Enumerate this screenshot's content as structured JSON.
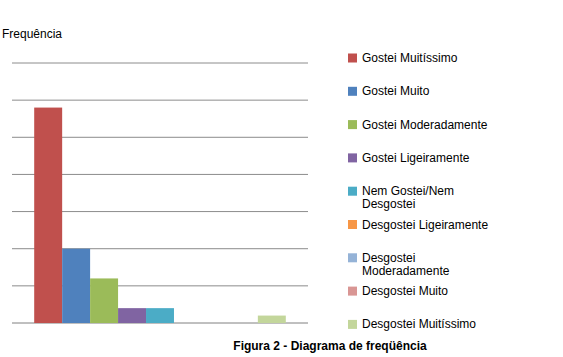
{
  "chart_data": {
    "type": "bar",
    "title": "Figura 2 - Diagrama de freqüência",
    "y_label": "Frequência",
    "categories": [
      null
    ],
    "series": [
      {
        "name": "Gostei Muitíssimo",
        "color": "#c0504d",
        "values": [
          29
        ]
      },
      {
        "name": "Gostei Muito",
        "color": "#4f81bd",
        "values": [
          10
        ]
      },
      {
        "name": "Gostei Moderadamente",
        "color": "#9bbb59",
        "values": [
          6
        ]
      },
      {
        "name": "Gostei Ligeiramente",
        "color": "#8064a2",
        "values": [
          2
        ]
      },
      {
        "name": "Nem Gostei/Nem Desgostei",
        "color": "#4bacc6",
        "values": [
          2
        ]
      },
      {
        "name": "Desgostei Ligeiramente",
        "color": "#f79646",
        "values": [
          0
        ]
      },
      {
        "name": "Desgostei Moderadamente",
        "color": "#95b3d7",
        "values": [
          0
        ]
      },
      {
        "name": "Desgostei Muito",
        "color": "#d99694",
        "values": [
          0
        ]
      },
      {
        "name": "Desgostei Muitíssimo",
        "color": "#c3d69b",
        "values": [
          1
        ]
      }
    ],
    "ylim": [
      0,
      35
    ],
    "yticks": [
      0,
      5,
      10,
      15,
      20,
      25,
      30,
      35
    ],
    "grid": true,
    "legend": "right",
    "tick_labels": false
  }
}
